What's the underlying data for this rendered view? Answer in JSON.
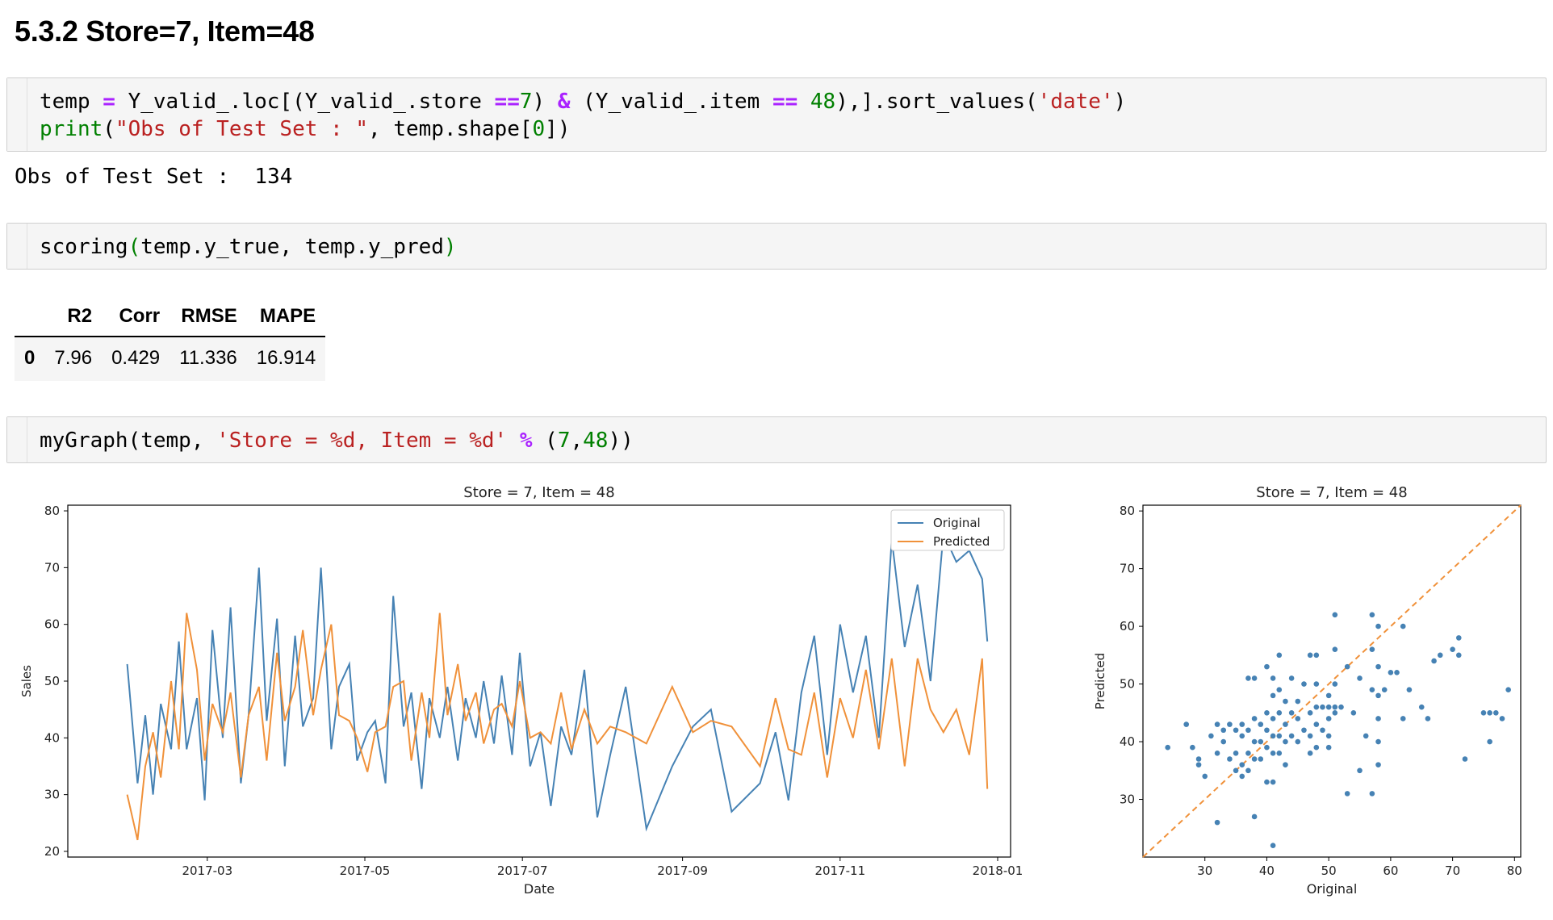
{
  "heading": "5.3.2  Store=7, Item=48",
  "cell1": {
    "line1": [
      {
        "t": "temp ",
        "c": "pl"
      },
      {
        "t": "=",
        "c": "kw"
      },
      {
        "t": " Y_valid_.loc[(Y_valid_.store ",
        "c": "pl"
      },
      {
        "t": "==",
        "c": "kw"
      },
      {
        "t": "7",
        "c": "num"
      },
      {
        "t": ") ",
        "c": "pl"
      },
      {
        "t": "&",
        "c": "kw"
      },
      {
        "t": " (Y_valid_.item ",
        "c": "pl"
      },
      {
        "t": "==",
        "c": "kw"
      },
      {
        "t": " 48",
        "c": "num"
      },
      {
        "t": "),].sort_values(",
        "c": "pl"
      },
      {
        "t": "'date'",
        "c": "str"
      },
      {
        "t": ")",
        "c": "pl"
      }
    ],
    "line2": [
      {
        "t": "print",
        "c": "fn"
      },
      {
        "t": "(",
        "c": "pl"
      },
      {
        "t": "\"Obs of Test Set : \"",
        "c": "str"
      },
      {
        "t": ", temp.shape[",
        "c": "pl"
      },
      {
        "t": "0",
        "c": "num"
      },
      {
        "t": "])",
        "c": "pl"
      }
    ]
  },
  "stdout": "Obs of Test Set :  134",
  "cell2": {
    "line1": [
      {
        "t": "scoring",
        "c": "pl"
      },
      {
        "t": "(",
        "c": "num"
      },
      {
        "t": "temp.y_true, temp.y_pred",
        "c": "pl"
      },
      {
        "t": ")",
        "c": "num"
      }
    ]
  },
  "table": {
    "columns": [
      "",
      "R2",
      "Corr",
      "RMSE",
      "MAPE"
    ],
    "rows": [
      [
        "0",
        "7.96",
        "0.429",
        "11.336",
        "16.914"
      ]
    ]
  },
  "cell3": {
    "line1": [
      {
        "t": "myGraph(temp, ",
        "c": "pl"
      },
      {
        "t": "'Store = %d, Item = %d'",
        "c": "str"
      },
      {
        "t": " ",
        "c": "pl"
      },
      {
        "t": "%",
        "c": "kw"
      },
      {
        "t": " (",
        "c": "pl"
      },
      {
        "t": "7",
        "c": "num"
      },
      {
        "t": ",",
        "c": "pl"
      },
      {
        "t": "48",
        "c": "num"
      },
      {
        "t": "))",
        "c": "pl"
      }
    ]
  },
  "colors": {
    "original": "#4682b4",
    "predicted": "#f0913a"
  },
  "chart_data": [
    {
      "type": "line",
      "title": "Store = 7, Item = 48",
      "xlabel": "Date",
      "ylabel": "Sales",
      "xlim": [
        "2017-01-06",
        "2018-01-06"
      ],
      "ylim": [
        19,
        81
      ],
      "xticks": [
        "2017-03",
        "2017-05",
        "2017-07",
        "2017-09",
        "2017-11",
        "2018-01"
      ],
      "yticks": [
        20,
        30,
        40,
        50,
        60,
        70,
        80
      ],
      "legend": "top-right",
      "x": [
        "2017-01-29",
        "2017-02-02",
        "2017-02-05",
        "2017-02-08",
        "2017-02-11",
        "2017-02-15",
        "2017-02-18",
        "2017-02-21",
        "2017-02-25",
        "2017-02-28",
        "2017-03-03",
        "2017-03-07",
        "2017-03-10",
        "2017-03-14",
        "2017-03-17",
        "2017-03-21",
        "2017-03-24",
        "2017-03-28",
        "2017-03-31",
        "2017-04-04",
        "2017-04-07",
        "2017-04-11",
        "2017-04-14",
        "2017-04-18",
        "2017-04-21",
        "2017-04-25",
        "2017-04-28",
        "2017-05-02",
        "2017-05-05",
        "2017-05-09",
        "2017-05-12",
        "2017-05-16",
        "2017-05-19",
        "2017-05-23",
        "2017-05-26",
        "2017-05-30",
        "2017-06-02",
        "2017-06-06",
        "2017-06-09",
        "2017-06-13",
        "2017-06-16",
        "2017-06-20",
        "2017-06-23",
        "2017-06-27",
        "2017-06-30",
        "2017-07-04",
        "2017-07-08",
        "2017-07-12",
        "2017-07-16",
        "2017-07-20",
        "2017-07-25",
        "2017-07-30",
        "2017-08-04",
        "2017-08-10",
        "2017-08-18",
        "2017-08-28",
        "2017-09-05",
        "2017-09-12",
        "2017-09-20",
        "2017-10-01",
        "2017-10-07",
        "2017-10-12",
        "2017-10-17",
        "2017-10-22",
        "2017-10-27",
        "2017-11-01",
        "2017-11-06",
        "2017-11-11",
        "2017-11-16",
        "2017-11-21",
        "2017-11-26",
        "2017-12-01",
        "2017-12-06",
        "2017-12-11",
        "2017-12-16",
        "2017-12-21",
        "2017-12-26",
        "2017-12-28"
      ],
      "series": [
        {
          "name": "Original",
          "values": [
            53,
            32,
            44,
            30,
            46,
            38,
            57,
            38,
            47,
            29,
            59,
            40,
            63,
            32,
            44,
            70,
            43,
            61,
            35,
            58,
            42,
            47,
            70,
            38,
            49,
            53,
            36,
            41,
            43,
            32,
            65,
            42,
            48,
            31,
            47,
            40,
            49,
            36,
            47,
            40,
            50,
            39,
            51,
            37,
            55,
            35,
            41,
            28,
            42,
            37,
            52,
            26,
            37,
            49,
            24,
            35,
            42,
            45,
            27,
            32,
            41,
            29,
            48,
            58,
            37,
            60,
            48,
            58,
            40,
            75,
            56,
            67,
            50,
            76,
            71,
            73,
            68,
            57
          ]
        },
        {
          "name": "Predicted",
          "values": [
            30,
            22,
            35,
            41,
            33,
            50,
            38,
            62,
            52,
            36,
            46,
            41,
            48,
            33,
            44,
            49,
            36,
            55,
            43,
            49,
            59,
            44,
            52,
            60,
            44,
            43,
            40,
            34,
            41,
            42,
            49,
            50,
            36,
            48,
            40,
            62,
            44,
            53,
            43,
            48,
            39,
            45,
            46,
            42,
            50,
            40,
            41,
            39,
            48,
            38,
            45,
            39,
            42,
            41,
            39,
            49,
            41,
            43,
            42,
            35,
            47,
            38,
            37,
            48,
            33,
            47,
            40,
            52,
            38,
            54,
            35,
            54,
            45,
            41,
            45,
            37,
            54,
            31
          ]
        }
      ]
    },
    {
      "type": "scatter",
      "title": "Store = 7, Item = 48",
      "xlabel": "Original",
      "ylabel": "Predicted",
      "xlim": [
        20,
        81
      ],
      "ylim": [
        20,
        81
      ],
      "xticks": [
        30,
        40,
        50,
        60,
        70,
        80
      ],
      "yticks": [
        30,
        40,
        50,
        60,
        70,
        80
      ],
      "diagonal": "y = x (dashed, orange)",
      "points": [
        [
          24,
          39
        ],
        [
          27,
          43
        ],
        [
          28,
          39
        ],
        [
          29,
          37
        ],
        [
          29,
          36
        ],
        [
          30,
          34
        ],
        [
          31,
          41
        ],
        [
          32,
          43
        ],
        [
          32,
          38
        ],
        [
          32,
          26
        ],
        [
          33,
          42
        ],
        [
          33,
          40
        ],
        [
          34,
          43
        ],
        [
          34,
          37
        ],
        [
          35,
          42
        ],
        [
          35,
          38
        ],
        [
          35,
          35
        ],
        [
          36,
          43
        ],
        [
          36,
          41
        ],
        [
          36,
          36
        ],
        [
          36,
          34
        ],
        [
          37,
          51
        ],
        [
          37,
          42
        ],
        [
          37,
          38
        ],
        [
          37,
          35
        ],
        [
          38,
          51
        ],
        [
          38,
          44
        ],
        [
          38,
          40
        ],
        [
          38,
          37
        ],
        [
          38,
          27
        ],
        [
          39,
          43
        ],
        [
          39,
          40
        ],
        [
          39,
          37
        ],
        [
          40,
          53
        ],
        [
          40,
          45
        ],
        [
          40,
          42
        ],
        [
          40,
          39
        ],
        [
          40,
          33
        ],
        [
          41,
          51
        ],
        [
          41,
          48
        ],
        [
          41,
          44
        ],
        [
          41,
          41
        ],
        [
          41,
          38
        ],
        [
          41,
          33
        ],
        [
          41,
          22
        ],
        [
          42,
          55
        ],
        [
          42,
          49
        ],
        [
          42,
          45
        ],
        [
          42,
          41
        ],
        [
          42,
          38
        ],
        [
          43,
          47
        ],
        [
          43,
          43
        ],
        [
          43,
          40
        ],
        [
          43,
          36
        ],
        [
          44,
          51
        ],
        [
          44,
          45
        ],
        [
          44,
          41
        ],
        [
          45,
          47
        ],
        [
          45,
          44
        ],
        [
          45,
          40
        ],
        [
          46,
          50
        ],
        [
          46,
          42
        ],
        [
          47,
          55
        ],
        [
          47,
          45
        ],
        [
          47,
          41
        ],
        [
          47,
          38
        ],
        [
          48,
          55
        ],
        [
          48,
          50
        ],
        [
          48,
          46
        ],
        [
          48,
          43
        ],
        [
          48,
          39
        ],
        [
          49,
          46
        ],
        [
          49,
          42
        ],
        [
          50,
          48
        ],
        [
          50,
          46
        ],
        [
          50,
          44
        ],
        [
          50,
          41
        ],
        [
          50,
          39
        ],
        [
          51,
          62
        ],
        [
          51,
          56
        ],
        [
          51,
          50
        ],
        [
          51,
          46
        ],
        [
          51,
          45
        ],
        [
          52,
          46
        ],
        [
          53,
          53
        ],
        [
          53,
          31
        ],
        [
          54,
          45
        ],
        [
          55,
          51
        ],
        [
          55,
          35
        ],
        [
          56,
          41
        ],
        [
          57,
          62
        ],
        [
          57,
          56
        ],
        [
          57,
          49
        ],
        [
          57,
          31
        ],
        [
          58,
          60
        ],
        [
          58,
          53
        ],
        [
          58,
          48
        ],
        [
          58,
          44
        ],
        [
          58,
          40
        ],
        [
          58,
          36
        ],
        [
          59,
          49
        ],
        [
          60,
          52
        ],
        [
          61,
          52
        ],
        [
          62,
          60
        ],
        [
          62,
          44
        ],
        [
          63,
          49
        ],
        [
          65,
          46
        ],
        [
          66,
          44
        ],
        [
          67,
          54
        ],
        [
          68,
          55
        ],
        [
          70,
          56
        ],
        [
          71,
          58
        ],
        [
          71,
          55
        ],
        [
          72,
          37
        ],
        [
          75,
          45
        ],
        [
          76,
          45
        ],
        [
          76,
          40
        ],
        [
          77,
          45
        ],
        [
          78,
          44
        ],
        [
          79,
          49
        ]
      ]
    }
  ]
}
